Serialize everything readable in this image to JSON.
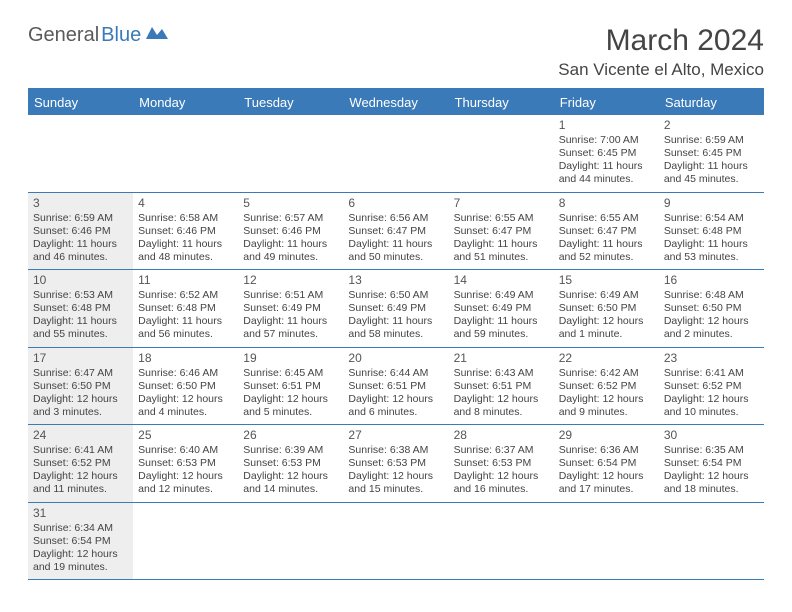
{
  "logo": {
    "word1": "General",
    "word2": "Blue"
  },
  "title": "March 2024",
  "location": "San Vicente el Alto, Mexico",
  "dayHeaders": [
    "Sunday",
    "Monday",
    "Tuesday",
    "Wednesday",
    "Thursday",
    "Friday",
    "Saturday"
  ],
  "colors": {
    "accent": "#3a7ab8",
    "sundayBg": "#eeeeee",
    "text": "#444444",
    "headerText": "#ffffff"
  },
  "weeks": [
    [
      null,
      null,
      null,
      null,
      null,
      {
        "n": "1",
        "sr": "Sunrise: 7:00 AM",
        "ss": "Sunset: 6:45 PM",
        "dl": "Daylight: 11 hours and 44 minutes."
      },
      {
        "n": "2",
        "sr": "Sunrise: 6:59 AM",
        "ss": "Sunset: 6:45 PM",
        "dl": "Daylight: 11 hours and 45 minutes."
      }
    ],
    [
      {
        "n": "3",
        "sr": "Sunrise: 6:59 AM",
        "ss": "Sunset: 6:46 PM",
        "dl": "Daylight: 11 hours and 46 minutes."
      },
      {
        "n": "4",
        "sr": "Sunrise: 6:58 AM",
        "ss": "Sunset: 6:46 PM",
        "dl": "Daylight: 11 hours and 48 minutes."
      },
      {
        "n": "5",
        "sr": "Sunrise: 6:57 AM",
        "ss": "Sunset: 6:46 PM",
        "dl": "Daylight: 11 hours and 49 minutes."
      },
      {
        "n": "6",
        "sr": "Sunrise: 6:56 AM",
        "ss": "Sunset: 6:47 PM",
        "dl": "Daylight: 11 hours and 50 minutes."
      },
      {
        "n": "7",
        "sr": "Sunrise: 6:55 AM",
        "ss": "Sunset: 6:47 PM",
        "dl": "Daylight: 11 hours and 51 minutes."
      },
      {
        "n": "8",
        "sr": "Sunrise: 6:55 AM",
        "ss": "Sunset: 6:47 PM",
        "dl": "Daylight: 11 hours and 52 minutes."
      },
      {
        "n": "9",
        "sr": "Sunrise: 6:54 AM",
        "ss": "Sunset: 6:48 PM",
        "dl": "Daylight: 11 hours and 53 minutes."
      }
    ],
    [
      {
        "n": "10",
        "sr": "Sunrise: 6:53 AM",
        "ss": "Sunset: 6:48 PM",
        "dl": "Daylight: 11 hours and 55 minutes."
      },
      {
        "n": "11",
        "sr": "Sunrise: 6:52 AM",
        "ss": "Sunset: 6:48 PM",
        "dl": "Daylight: 11 hours and 56 minutes."
      },
      {
        "n": "12",
        "sr": "Sunrise: 6:51 AM",
        "ss": "Sunset: 6:49 PM",
        "dl": "Daylight: 11 hours and 57 minutes."
      },
      {
        "n": "13",
        "sr": "Sunrise: 6:50 AM",
        "ss": "Sunset: 6:49 PM",
        "dl": "Daylight: 11 hours and 58 minutes."
      },
      {
        "n": "14",
        "sr": "Sunrise: 6:49 AM",
        "ss": "Sunset: 6:49 PM",
        "dl": "Daylight: 11 hours and 59 minutes."
      },
      {
        "n": "15",
        "sr": "Sunrise: 6:49 AM",
        "ss": "Sunset: 6:50 PM",
        "dl": "Daylight: 12 hours and 1 minute."
      },
      {
        "n": "16",
        "sr": "Sunrise: 6:48 AM",
        "ss": "Sunset: 6:50 PM",
        "dl": "Daylight: 12 hours and 2 minutes."
      }
    ],
    [
      {
        "n": "17",
        "sr": "Sunrise: 6:47 AM",
        "ss": "Sunset: 6:50 PM",
        "dl": "Daylight: 12 hours and 3 minutes."
      },
      {
        "n": "18",
        "sr": "Sunrise: 6:46 AM",
        "ss": "Sunset: 6:50 PM",
        "dl": "Daylight: 12 hours and 4 minutes."
      },
      {
        "n": "19",
        "sr": "Sunrise: 6:45 AM",
        "ss": "Sunset: 6:51 PM",
        "dl": "Daylight: 12 hours and 5 minutes."
      },
      {
        "n": "20",
        "sr": "Sunrise: 6:44 AM",
        "ss": "Sunset: 6:51 PM",
        "dl": "Daylight: 12 hours and 6 minutes."
      },
      {
        "n": "21",
        "sr": "Sunrise: 6:43 AM",
        "ss": "Sunset: 6:51 PM",
        "dl": "Daylight: 12 hours and 8 minutes."
      },
      {
        "n": "22",
        "sr": "Sunrise: 6:42 AM",
        "ss": "Sunset: 6:52 PM",
        "dl": "Daylight: 12 hours and 9 minutes."
      },
      {
        "n": "23",
        "sr": "Sunrise: 6:41 AM",
        "ss": "Sunset: 6:52 PM",
        "dl": "Daylight: 12 hours and 10 minutes."
      }
    ],
    [
      {
        "n": "24",
        "sr": "Sunrise: 6:41 AM",
        "ss": "Sunset: 6:52 PM",
        "dl": "Daylight: 12 hours and 11 minutes."
      },
      {
        "n": "25",
        "sr": "Sunrise: 6:40 AM",
        "ss": "Sunset: 6:53 PM",
        "dl": "Daylight: 12 hours and 12 minutes."
      },
      {
        "n": "26",
        "sr": "Sunrise: 6:39 AM",
        "ss": "Sunset: 6:53 PM",
        "dl": "Daylight: 12 hours and 14 minutes."
      },
      {
        "n": "27",
        "sr": "Sunrise: 6:38 AM",
        "ss": "Sunset: 6:53 PM",
        "dl": "Daylight: 12 hours and 15 minutes."
      },
      {
        "n": "28",
        "sr": "Sunrise: 6:37 AM",
        "ss": "Sunset: 6:53 PM",
        "dl": "Daylight: 12 hours and 16 minutes."
      },
      {
        "n": "29",
        "sr": "Sunrise: 6:36 AM",
        "ss": "Sunset: 6:54 PM",
        "dl": "Daylight: 12 hours and 17 minutes."
      },
      {
        "n": "30",
        "sr": "Sunrise: 6:35 AM",
        "ss": "Sunset: 6:54 PM",
        "dl": "Daylight: 12 hours and 18 minutes."
      }
    ],
    [
      {
        "n": "31",
        "sr": "Sunrise: 6:34 AM",
        "ss": "Sunset: 6:54 PM",
        "dl": "Daylight: 12 hours and 19 minutes."
      },
      null,
      null,
      null,
      null,
      null,
      null
    ]
  ]
}
